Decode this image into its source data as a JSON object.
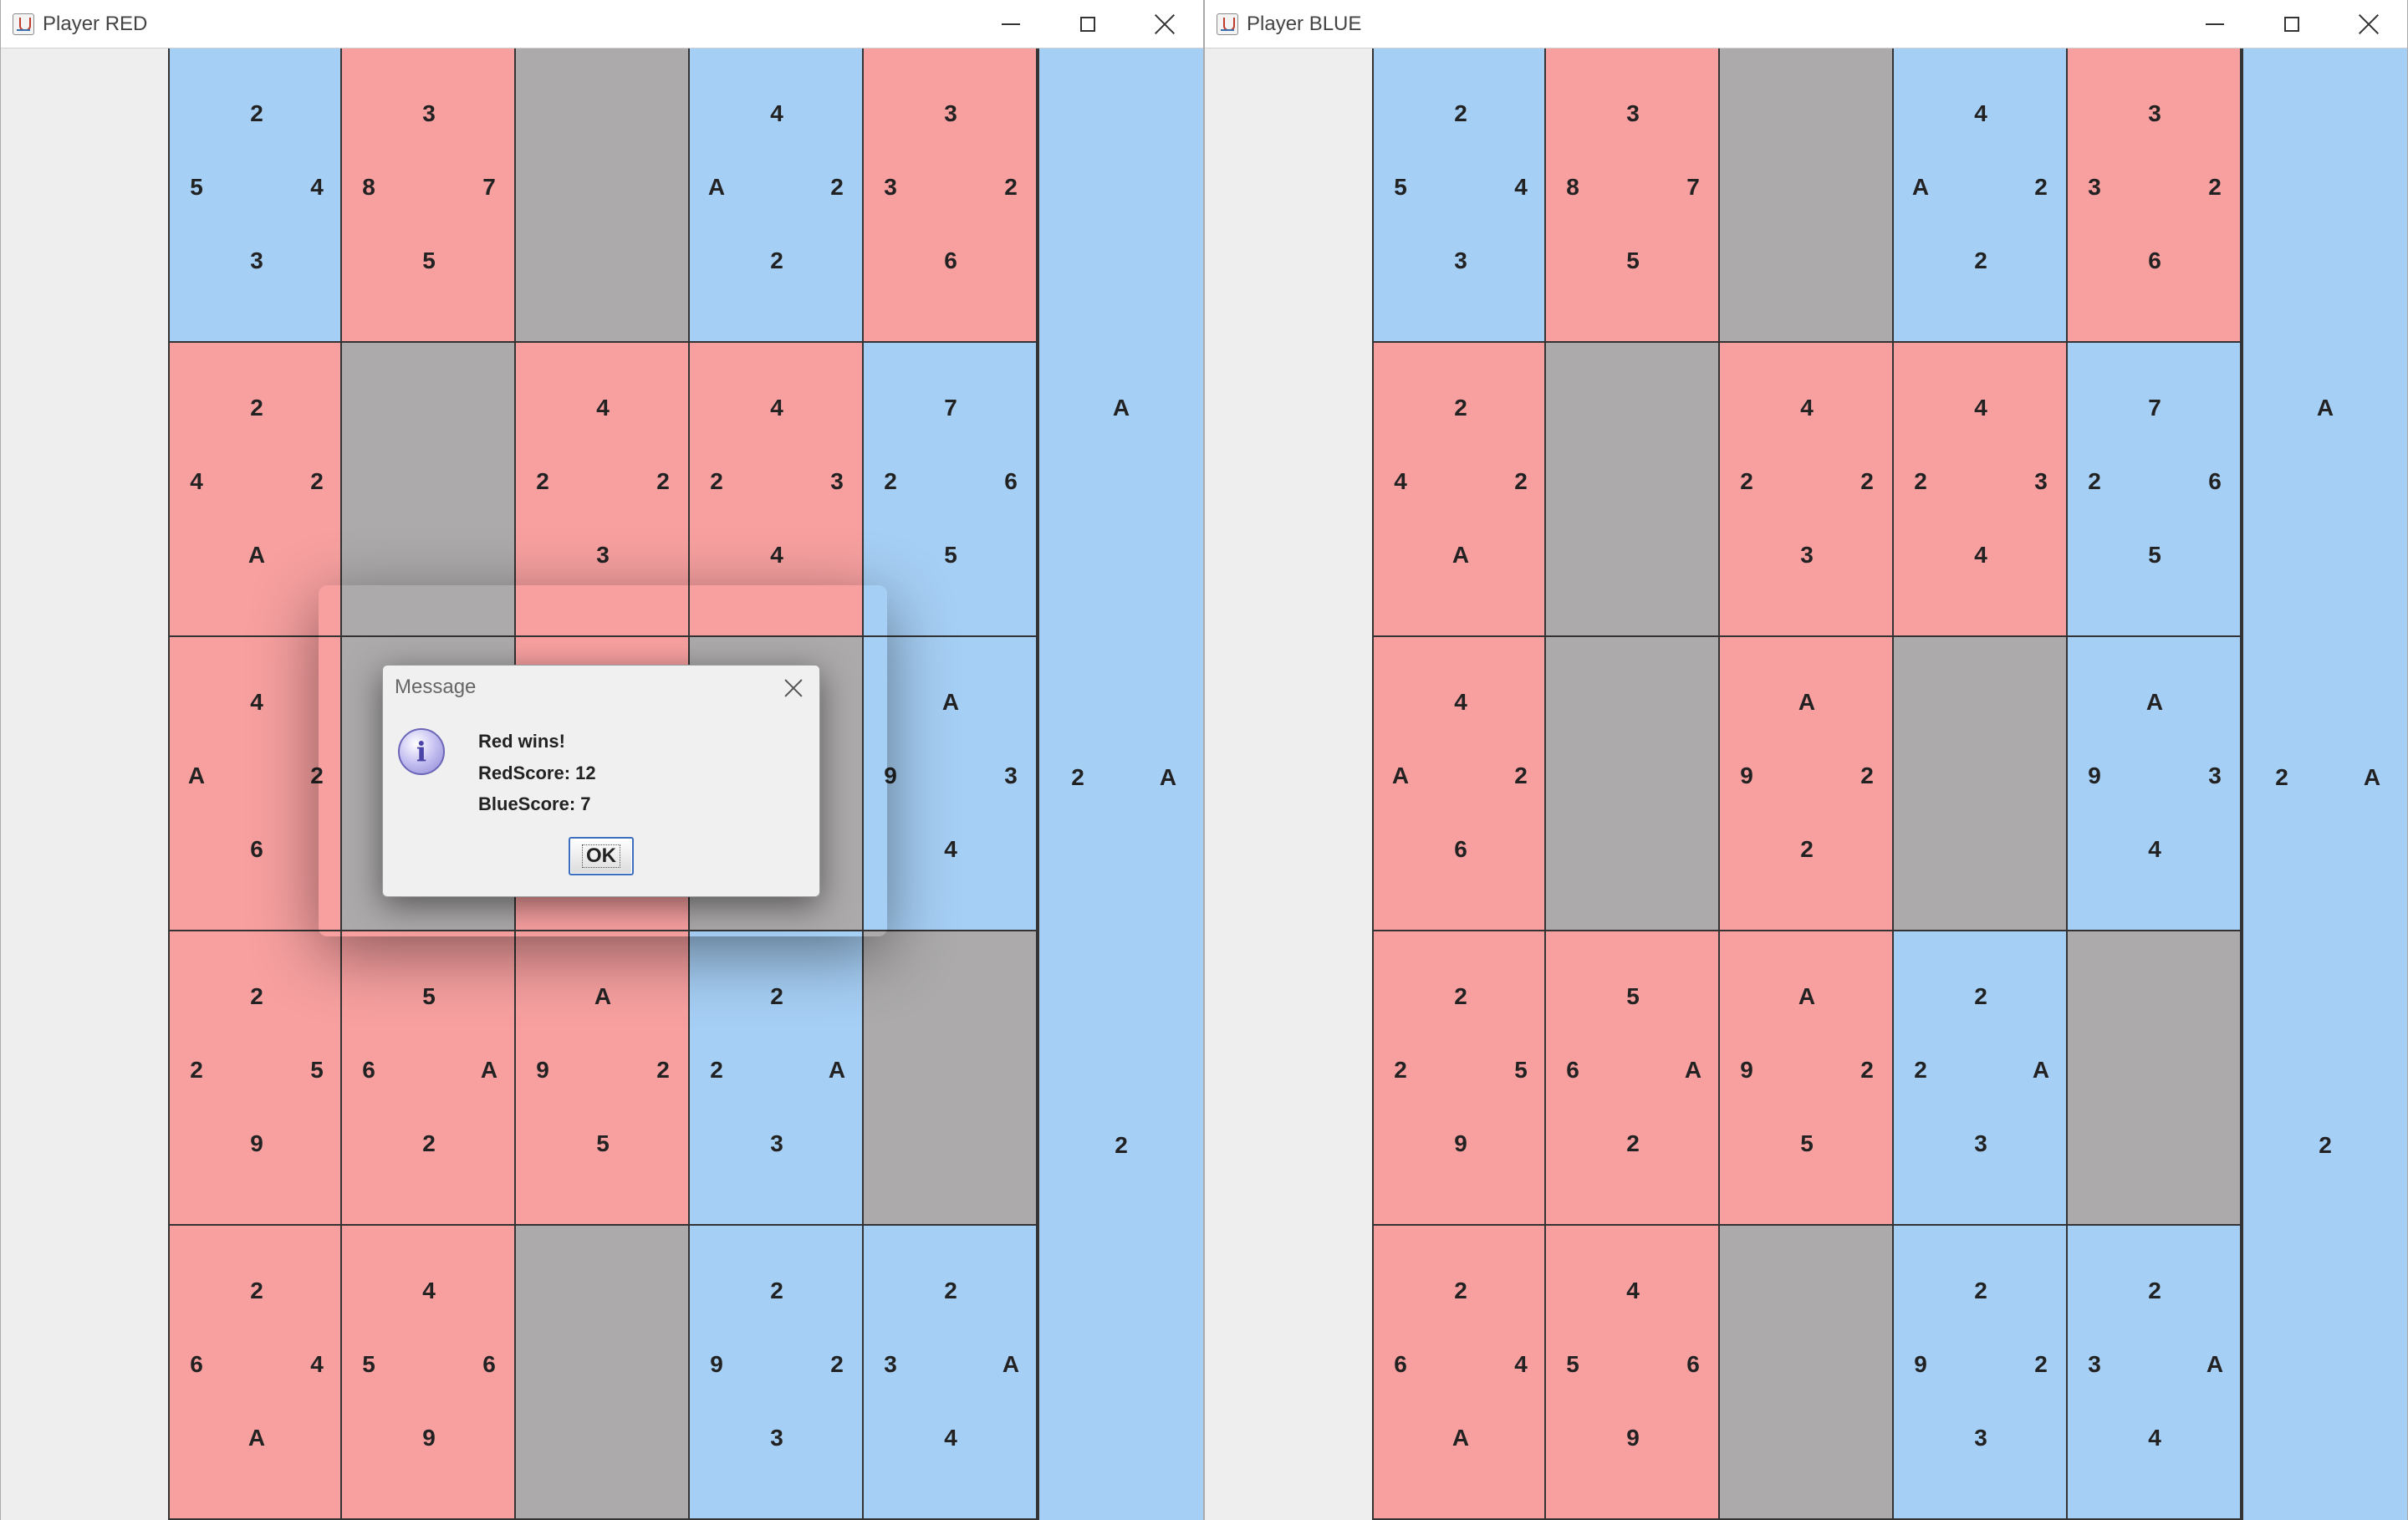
{
  "windows": {
    "red": {
      "title": "Player RED"
    },
    "blue": {
      "title": "Player BLUE"
    }
  },
  "colors": {
    "red": "#f8a0a0",
    "blue": "#a6cff5",
    "empty": "#acaaaa"
  },
  "board_red": [
    [
      {
        "owner": "blue",
        "top": "2",
        "left": "5",
        "right": "4",
        "bottom": "3"
      },
      {
        "owner": "red",
        "top": "3",
        "left": "8",
        "right": "7",
        "bottom": "5"
      },
      {
        "owner": "empty"
      },
      {
        "owner": "blue",
        "top": "4",
        "left": "A",
        "right": "2",
        "bottom": "2"
      },
      {
        "owner": "red",
        "top": "3",
        "left": "3",
        "right": "2",
        "bottom": "6"
      }
    ],
    [
      {
        "owner": "red",
        "top": "2",
        "left": "4",
        "right": "2",
        "bottom": "A"
      },
      {
        "owner": "empty"
      },
      {
        "owner": "red",
        "top": "4",
        "left": "2",
        "right": "2",
        "bottom": "3"
      },
      {
        "owner": "red",
        "top": "4",
        "left": "2",
        "right": "3",
        "bottom": "4"
      },
      {
        "owner": "blue",
        "top": "7",
        "left": "2",
        "right": "6",
        "bottom": "5"
      }
    ],
    [
      {
        "owner": "red",
        "top": "4",
        "left": "A",
        "right": "2",
        "bottom": "6"
      },
      {
        "owner": "empty"
      },
      {
        "owner": "red",
        "top": "",
        "left": "",
        "right": "",
        "bottom": ""
      },
      {
        "owner": "empty"
      },
      {
        "owner": "blue",
        "top": "A",
        "left": "9",
        "right": "3",
        "bottom": "4"
      }
    ],
    [
      {
        "owner": "red",
        "top": "2",
        "left": "2",
        "right": "5",
        "bottom": "9"
      },
      {
        "owner": "red",
        "top": "5",
        "left": "6",
        "right": "A",
        "bottom": "2"
      },
      {
        "owner": "red",
        "top": "A",
        "left": "9",
        "right": "2",
        "bottom": "5"
      },
      {
        "owner": "blue",
        "top": "2",
        "left": "2",
        "right": "A",
        "bottom": "3"
      },
      {
        "owner": "empty"
      }
    ],
    [
      {
        "owner": "red",
        "top": "2",
        "left": "6",
        "right": "4",
        "bottom": "A"
      },
      {
        "owner": "red",
        "top": "4",
        "left": "5",
        "right": "6",
        "bottom": "9"
      },
      {
        "owner": "empty"
      },
      {
        "owner": "blue",
        "top": "2",
        "left": "9",
        "right": "2",
        "bottom": "3"
      },
      {
        "owner": "blue",
        "top": "2",
        "left": "3",
        "right": "A",
        "bottom": "4"
      }
    ]
  ],
  "board_blue": [
    [
      {
        "owner": "blue",
        "top": "2",
        "left": "5",
        "right": "4",
        "bottom": "3"
      },
      {
        "owner": "red",
        "top": "3",
        "left": "8",
        "right": "7",
        "bottom": "5"
      },
      {
        "owner": "empty"
      },
      {
        "owner": "blue",
        "top": "4",
        "left": "A",
        "right": "2",
        "bottom": "2"
      },
      {
        "owner": "red",
        "top": "3",
        "left": "3",
        "right": "2",
        "bottom": "6"
      }
    ],
    [
      {
        "owner": "red",
        "top": "2",
        "left": "4",
        "right": "2",
        "bottom": "A"
      },
      {
        "owner": "empty"
      },
      {
        "owner": "red",
        "top": "4",
        "left": "2",
        "right": "2",
        "bottom": "3"
      },
      {
        "owner": "red",
        "top": "4",
        "left": "2",
        "right": "3",
        "bottom": "4"
      },
      {
        "owner": "blue",
        "top": "7",
        "left": "2",
        "right": "6",
        "bottom": "5"
      }
    ],
    [
      {
        "owner": "red",
        "top": "4",
        "left": "A",
        "right": "2",
        "bottom": "6"
      },
      {
        "owner": "empty"
      },
      {
        "owner": "red",
        "top": "A",
        "left": "9",
        "right": "2",
        "bottom": "2"
      },
      {
        "owner": "empty"
      },
      {
        "owner": "blue",
        "top": "A",
        "left": "9",
        "right": "3",
        "bottom": "4"
      }
    ],
    [
      {
        "owner": "red",
        "top": "2",
        "left": "2",
        "right": "5",
        "bottom": "9"
      },
      {
        "owner": "red",
        "top": "5",
        "left": "6",
        "right": "A",
        "bottom": "2"
      },
      {
        "owner": "red",
        "top": "A",
        "left": "9",
        "right": "2",
        "bottom": "5"
      },
      {
        "owner": "blue",
        "top": "2",
        "left": "2",
        "right": "A",
        "bottom": "3"
      },
      {
        "owner": "empty"
      }
    ],
    [
      {
        "owner": "red",
        "top": "2",
        "left": "6",
        "right": "4",
        "bottom": "A"
      },
      {
        "owner": "red",
        "top": "4",
        "left": "5",
        "right": "6",
        "bottom": "9"
      },
      {
        "owner": "empty"
      },
      {
        "owner": "blue",
        "top": "2",
        "left": "9",
        "right": "2",
        "bottom": "3"
      },
      {
        "owner": "blue",
        "top": "2",
        "left": "3",
        "right": "A",
        "bottom": "4"
      }
    ]
  ],
  "hand_red": {
    "top": "A",
    "left": "2",
    "right": "A",
    "bottom": "2"
  },
  "hand_blue": {
    "top": "A",
    "left": "2",
    "right": "A",
    "bottom": "2"
  },
  "dialog": {
    "title": "Message",
    "icon": "info-icon",
    "line1": "Red wins!",
    "line2": "RedScore: 12",
    "line3": "BlueScore: 7",
    "ok_label": "OK"
  }
}
